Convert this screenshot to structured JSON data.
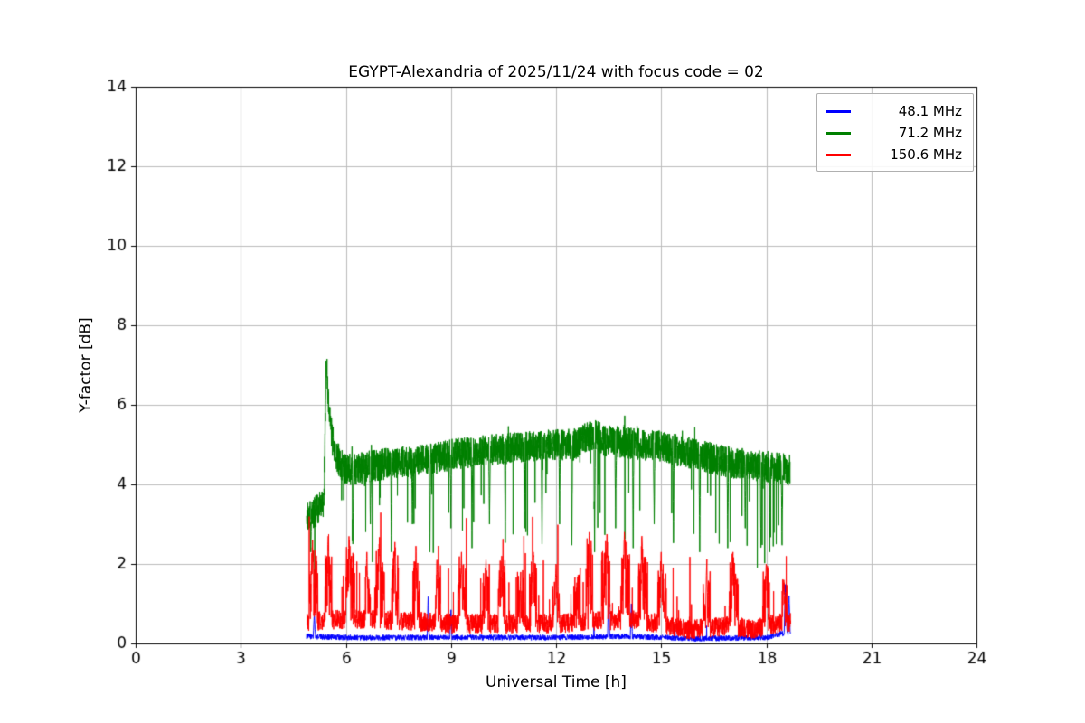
{
  "figure": {
    "background": "#ffffff"
  },
  "chart_data": {
    "type": "line",
    "title": "EGYPT-Alexandria of 2025/11/24 with focus code = 02",
    "xlabel": "Universal Time [h]",
    "ylabel": "Y-factor [dB]",
    "xlim": [
      0,
      24
    ],
    "ylim": [
      0,
      14
    ],
    "xticks": [
      0,
      3,
      6,
      9,
      12,
      15,
      18,
      21,
      24
    ],
    "yticks": [
      0,
      2,
      4,
      6,
      8,
      10,
      12,
      14
    ],
    "grid": true,
    "grid_color": "#bbbbbb",
    "legend_position": "upper right",
    "series": [
      {
        "name": "48.1 MHz",
        "color": "#0000ff",
        "x_start": 4.88,
        "x_end": 18.7,
        "step": 0.006,
        "noise": 0.07,
        "up_prob": 0.005,
        "up_max": 0.5,
        "down_prob": 0,
        "down_max": 0,
        "mean": [
          [
            4.88,
            0.18
          ],
          [
            6,
            0.15
          ],
          [
            8,
            0.15
          ],
          [
            10,
            0.15
          ],
          [
            12,
            0.15
          ],
          [
            14,
            0.18
          ],
          [
            16,
            0.12
          ],
          [
            18,
            0.15
          ],
          [
            18.7,
            0.3
          ]
        ],
        "events": [
          {
            "x": 5.1,
            "y": 0.8,
            "w": 0.03
          },
          {
            "x": 8.35,
            "y": 1.25,
            "w": 0.03
          },
          {
            "x": 9.0,
            "y": 0.9,
            "w": 0.03
          },
          {
            "x": 13.5,
            "y": 1.5,
            "w": 0.03
          },
          {
            "x": 14.15,
            "y": 1.0,
            "w": 0.03
          },
          {
            "x": 18.55,
            "y": 1.55,
            "w": 0.04
          },
          {
            "x": 18.65,
            "y": 1.2,
            "w": 0.03
          }
        ],
        "bursts": []
      },
      {
        "name": "71.2 MHz",
        "color": "#008000",
        "x_start": 4.88,
        "x_end": 18.68,
        "step": 0.004,
        "noise": 0.4,
        "up_prob": 0.008,
        "up_max": 0.6,
        "down_prob": 0.02,
        "down_max": 2.2,
        "mean": [
          [
            4.88,
            3.2
          ],
          [
            5.1,
            3.3
          ],
          [
            5.3,
            3.45
          ],
          [
            5.38,
            3.6
          ],
          [
            5.44,
            7.2
          ],
          [
            5.52,
            5.8
          ],
          [
            5.62,
            5.1
          ],
          [
            5.75,
            4.7
          ],
          [
            5.9,
            4.45
          ],
          [
            6.2,
            4.35
          ],
          [
            6.6,
            4.45
          ],
          [
            7.0,
            4.5
          ],
          [
            7.5,
            4.55
          ],
          [
            8.0,
            4.6
          ],
          [
            8.5,
            4.65
          ],
          [
            9.0,
            4.75
          ],
          [
            9.5,
            4.8
          ],
          [
            10.0,
            4.85
          ],
          [
            10.5,
            4.9
          ],
          [
            11.0,
            4.95
          ],
          [
            11.5,
            4.95
          ],
          [
            12.0,
            5.0
          ],
          [
            12.5,
            5.0
          ],
          [
            12.9,
            5.2
          ],
          [
            13.1,
            5.25
          ],
          [
            13.4,
            5.1
          ],
          [
            14.0,
            5.05
          ],
          [
            14.5,
            5.0
          ],
          [
            15.0,
            4.95
          ],
          [
            15.5,
            4.85
          ],
          [
            16.0,
            4.75
          ],
          [
            16.5,
            4.65
          ],
          [
            17.0,
            4.55
          ],
          [
            17.5,
            4.5
          ],
          [
            18.0,
            4.45
          ],
          [
            18.4,
            4.4
          ],
          [
            18.68,
            4.35
          ]
        ],
        "events": [
          {
            "x": 5.0,
            "y": 2.3,
            "w": 0.02
          },
          {
            "x": 6.2,
            "y": 2.5,
            "w": 0.02
          },
          {
            "x": 6.7,
            "y": 3.0,
            "w": 0.02
          },
          {
            "x": 7.3,
            "y": 2.3,
            "w": 0.02
          },
          {
            "x": 7.9,
            "y": 3.0,
            "w": 0.02
          },
          {
            "x": 8.4,
            "y": 2.3,
            "w": 0.02
          },
          {
            "x": 9.0,
            "y": 2.9,
            "w": 0.02
          },
          {
            "x": 9.6,
            "y": 2.4,
            "w": 0.02
          },
          {
            "x": 10.1,
            "y": 3.0,
            "w": 0.02
          },
          {
            "x": 10.55,
            "y": 2.3,
            "w": 0.02
          },
          {
            "x": 11.1,
            "y": 2.9,
            "w": 0.02
          },
          {
            "x": 11.6,
            "y": 2.5,
            "w": 0.02
          },
          {
            "x": 12.1,
            "y": 3.0,
            "w": 0.02
          },
          {
            "x": 12.45,
            "y": 2.2,
            "w": 0.02
          },
          {
            "x": 13.1,
            "y": 2.3,
            "w": 0.02
          },
          {
            "x": 13.7,
            "y": 2.9,
            "w": 0.02
          },
          {
            "x": 14.2,
            "y": 2.4,
            "w": 0.02
          },
          {
            "x": 14.8,
            "y": 3.0,
            "w": 0.02
          },
          {
            "x": 15.35,
            "y": 2.3,
            "w": 0.02
          },
          {
            "x": 16.1,
            "y": 2.3,
            "w": 0.02
          },
          {
            "x": 16.9,
            "y": 2.4,
            "w": 0.02
          },
          {
            "x": 17.4,
            "y": 2.9,
            "w": 0.02
          },
          {
            "x": 17.85,
            "y": 2.2,
            "w": 0.02
          },
          {
            "x": 18.1,
            "y": 2.3,
            "w": 0.02
          },
          {
            "x": 18.45,
            "y": 2.3,
            "w": 0.02
          }
        ],
        "bursts": []
      },
      {
        "name": "150.6 MHz",
        "color": "#ff0000",
        "x_start": 4.9,
        "x_end": 18.7,
        "step": 0.005,
        "noise": 0.25,
        "up_prob": 0.025,
        "up_max": 1.7,
        "down_prob": 0,
        "down_max": 0,
        "mean": [
          [
            4.9,
            0.55
          ],
          [
            5.5,
            0.6
          ],
          [
            6,
            0.6
          ],
          [
            7,
            0.6
          ],
          [
            8,
            0.55
          ],
          [
            9,
            0.5
          ],
          [
            10,
            0.5
          ],
          [
            11,
            0.5
          ],
          [
            12,
            0.5
          ],
          [
            13,
            0.55
          ],
          [
            14,
            0.6
          ],
          [
            15,
            0.5
          ],
          [
            15.7,
            0.35
          ],
          [
            16.5,
            0.4
          ],
          [
            17,
            0.45
          ],
          [
            17.6,
            0.35
          ],
          [
            18,
            0.45
          ],
          [
            18.7,
            0.55
          ]
        ],
        "events": [
          {
            "x": 5.05,
            "y": 2.6,
            "w": 0.03
          },
          {
            "x": 5.5,
            "y": 2.7,
            "w": 0.03
          },
          {
            "x": 6.1,
            "y": 2.6,
            "w": 0.03
          },
          {
            "x": 6.6,
            "y": 2.3,
            "w": 0.03
          },
          {
            "x": 6.95,
            "y": 2.5,
            "w": 0.03
          },
          {
            "x": 7.4,
            "y": 2.55,
            "w": 0.03
          },
          {
            "x": 8.0,
            "y": 2.45,
            "w": 0.03
          },
          {
            "x": 8.6,
            "y": 2.1,
            "w": 0.03
          },
          {
            "x": 9.3,
            "y": 2.3,
            "w": 0.03
          },
          {
            "x": 10.0,
            "y": 2.1,
            "w": 0.03
          },
          {
            "x": 10.45,
            "y": 2.2,
            "w": 0.03
          },
          {
            "x": 11.35,
            "y": 2.3,
            "w": 0.03
          },
          {
            "x": 12.0,
            "y": 2.0,
            "w": 0.03
          },
          {
            "x": 12.95,
            "y": 2.8,
            "w": 0.03
          },
          {
            "x": 13.45,
            "y": 2.75,
            "w": 0.03
          },
          {
            "x": 13.95,
            "y": 2.8,
            "w": 0.03
          },
          {
            "x": 14.45,
            "y": 2.7,
            "w": 0.03
          },
          {
            "x": 15.0,
            "y": 2.3,
            "w": 0.03
          },
          {
            "x": 16.3,
            "y": 2.0,
            "w": 0.03
          },
          {
            "x": 17.05,
            "y": 2.3,
            "w": 0.03
          },
          {
            "x": 18.0,
            "y": 2.0,
            "w": 0.03
          },
          {
            "x": 18.5,
            "y": 1.6,
            "w": 0.03
          }
        ],
        "bursts": [
          [
            4.95,
            5.2,
            1.6
          ],
          [
            5.4,
            5.6,
            1.8
          ],
          [
            6.0,
            6.25,
            1.7
          ],
          [
            6.55,
            6.7,
            1.2
          ],
          [
            6.85,
            7.1,
            1.6
          ],
          [
            7.3,
            7.5,
            1.7
          ],
          [
            7.9,
            8.1,
            1.5
          ],
          [
            8.55,
            8.7,
            1.2
          ],
          [
            9.2,
            9.45,
            1.5
          ],
          [
            9.9,
            10.1,
            1.3
          ],
          [
            10.35,
            10.55,
            1.4
          ],
          [
            10.9,
            11.1,
            1.2
          ],
          [
            11.25,
            11.45,
            1.5
          ],
          [
            11.9,
            12.1,
            1.2
          ],
          [
            12.5,
            12.7,
            1.3
          ],
          [
            12.85,
            13.05,
            1.9
          ],
          [
            13.3,
            13.55,
            1.9
          ],
          [
            13.85,
            14.1,
            1.9
          ],
          [
            14.35,
            14.6,
            1.8
          ],
          [
            14.9,
            15.15,
            1.4
          ],
          [
            16.2,
            16.4,
            1.2
          ],
          [
            16.95,
            17.2,
            1.5
          ],
          [
            17.9,
            18.1,
            1.3
          ],
          [
            18.45,
            18.6,
            1.0
          ]
        ]
      }
    ]
  }
}
